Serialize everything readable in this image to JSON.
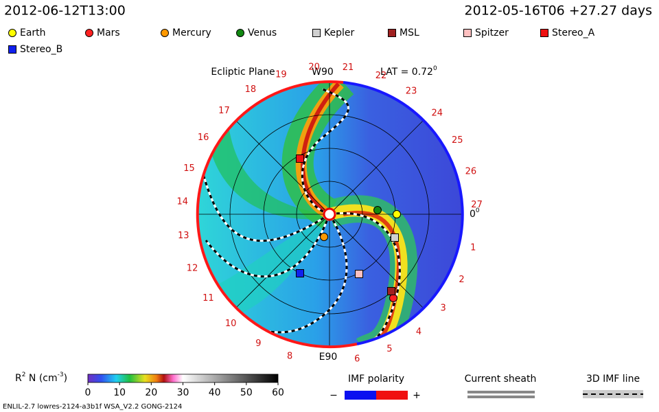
{
  "header": {
    "time": "2012-06-12T13:00",
    "run": "2012-05-16T06 +27.27 days"
  },
  "legend": [
    {
      "name": "Earth",
      "color": "#ffff00",
      "shape": "circle"
    },
    {
      "name": "Mars",
      "color": "#ff2020",
      "shape": "circle"
    },
    {
      "name": "Mercury",
      "color": "#ff9900",
      "shape": "circle"
    },
    {
      "name": "Venus",
      "color": "#118811",
      "shape": "circle"
    },
    {
      "name": "Kepler",
      "color": "#d0d0d0",
      "shape": "square"
    },
    {
      "name": "MSL",
      "color": "#a02020",
      "shape": "square"
    },
    {
      "name": "Spitzer",
      "color": "#ffc0c0",
      "shape": "square"
    },
    {
      "name": "Stereo_A",
      "color": "#ee1111",
      "shape": "square"
    },
    {
      "name": "Stereo_B",
      "color": "#1020ee",
      "shape": "square"
    }
  ],
  "plot": {
    "title": "Ecliptic Plane",
    "top_label": "W90",
    "bottom_label": "E90",
    "lat_text": "LAT = 0.72",
    "lat_sup": "0",
    "zero_label": "0",
    "zero_sup": "0",
    "sectors": [
      "1",
      "2",
      "3",
      "4",
      "5",
      "6",
      "8",
      "9",
      "10",
      "11",
      "12",
      "13",
      "14",
      "15",
      "16",
      "17",
      "18",
      "19",
      "20",
      "21",
      "22",
      "23",
      "24",
      "25",
      "26",
      "27"
    ]
  },
  "colorbar": {
    "label": "R",
    "label_sup": "2",
    "label_mid": " N (cm",
    "label_sup2": "-3",
    "label_end": ")",
    "lim": [
      0,
      60
    ],
    "ticks": [
      0,
      10,
      20,
      30,
      40,
      50,
      60
    ]
  },
  "keys": {
    "imf_title": "IMF polarity",
    "minus": "−",
    "plus": "+",
    "sheath_title": "Current sheath",
    "imf_line_title": "3D IMF line"
  },
  "footer": "ENLIL-2.7 lowres-2124-a3b1f WSA_V2.2 GONG-2124"
}
